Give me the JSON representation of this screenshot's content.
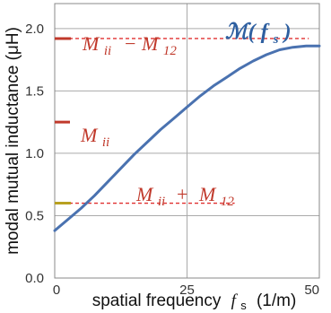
{
  "chart_data": {
    "type": "line",
    "title": "",
    "xlabel": "spatial frequency",
    "xlabel_var": "f",
    "xlabel_sub": "s",
    "xlabel_unit": "(1/m)",
    "ylabel": "modal mutual inductance (μH)",
    "xlim": [
      0,
      50
    ],
    "ylim": [
      0.0,
      2.2
    ],
    "x_ticks": [
      "0",
      "25",
      "50"
    ],
    "y_ticks": [
      "0.0",
      "0.5",
      "1.0",
      "1.5",
      "2.0"
    ],
    "grid": true,
    "series": [
      {
        "name": "M(f_s)",
        "label_main": "ℳ(",
        "label_var": "f",
        "label_sub": "s",
        "label_close": ")",
        "color": "#4a72b0",
        "x": [
          0,
          2.5,
          5,
          7.5,
          10,
          12.5,
          15,
          17.5,
          20,
          22.5,
          25,
          27.5,
          30,
          32.5,
          35,
          37.5,
          40,
          42.5,
          45,
          47.5,
          50
        ],
        "y": [
          0.38,
          0.47,
          0.56,
          0.66,
          0.77,
          0.88,
          0.99,
          1.09,
          1.19,
          1.28,
          1.37,
          1.46,
          1.54,
          1.61,
          1.68,
          1.74,
          1.79,
          1.83,
          1.85,
          1.86,
          1.86
        ]
      }
    ],
    "reference_lines": [
      {
        "y": 1.92,
        "x_end": 48,
        "line_color": "#e03030",
        "marker_color": "#c0392b",
        "label_a": "M",
        "label_a_sub": "ii",
        "label_op": "−",
        "label_b": "M",
        "label_b_sub": "12"
      },
      {
        "y": 0.6,
        "x_end": 34,
        "line_color": "#e03030",
        "marker_color": "#b8a020",
        "label_a": "M",
        "label_a_sub": "ii",
        "label_op": "+",
        "label_b": "M",
        "label_b_sub": "12"
      }
    ],
    "marker": {
      "y": 1.25,
      "color": "#c0392b",
      "label_a": "M",
      "label_a_sub": "ii"
    },
    "annotation_color": "#c0392b",
    "title_color": "#2e5fa0"
  }
}
